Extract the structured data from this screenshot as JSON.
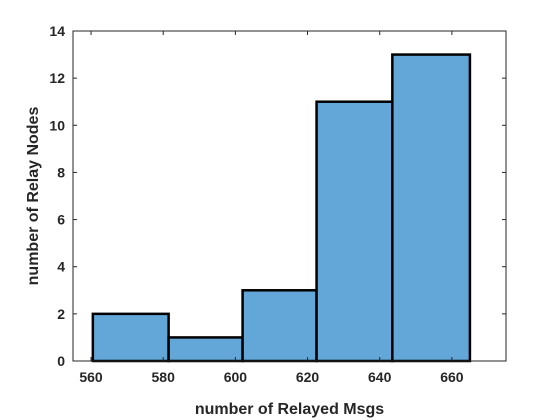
{
  "chart_data": {
    "type": "bar",
    "subtype": "histogram",
    "bins": [
      {
        "x0": 560.5,
        "x1": 581.5,
        "count": 2
      },
      {
        "x0": 581.5,
        "x1": 602.0,
        "count": 1
      },
      {
        "x0": 602.0,
        "x1": 622.5,
        "count": 3
      },
      {
        "x0": 622.5,
        "x1": 643.5,
        "count": 11
      },
      {
        "x0": 643.5,
        "x1": 665.0,
        "count": 13
      }
    ],
    "xlabel": "number of Relayed Msgs",
    "ylabel": "number of Relay Nodes",
    "xlim": [
      555,
      675
    ],
    "ylim": [
      0,
      14
    ],
    "xticks": [
      560,
      580,
      600,
      620,
      640,
      660
    ],
    "yticks": [
      0,
      2,
      4,
      6,
      8,
      10,
      12,
      14
    ],
    "grid": false,
    "colors": {
      "bar_fill": "#63a7d8",
      "bar_edge": "#000000",
      "axis": "#262626"
    }
  }
}
